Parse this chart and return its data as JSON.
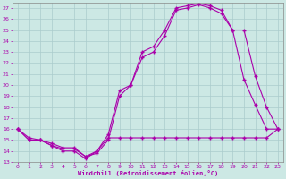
{
  "xlabel": "Windchill (Refroidissement éolien,°C)",
  "bg_color": "#cce8e4",
  "line_color": "#aa00aa",
  "grid_color": "#aacccc",
  "xlim": [
    -0.5,
    23.5
  ],
  "ylim": [
    13,
    27.5
  ],
  "xticks": [
    0,
    1,
    2,
    3,
    4,
    5,
    6,
    7,
    8,
    9,
    10,
    11,
    12,
    13,
    14,
    15,
    16,
    17,
    18,
    19,
    20,
    21,
    22,
    23
  ],
  "yticks": [
    13,
    14,
    15,
    16,
    17,
    18,
    19,
    20,
    21,
    22,
    23,
    24,
    25,
    26,
    27
  ],
  "curve1_x": [
    0,
    1,
    2,
    3,
    4,
    5,
    6,
    7,
    8,
    9,
    10,
    11,
    12,
    13,
    14,
    15,
    16,
    17,
    18,
    19,
    20,
    21,
    22,
    23
  ],
  "curve1_y": [
    16,
    15,
    15,
    14.5,
    14,
    14,
    13.3,
    14,
    15.5,
    19.5,
    20.0,
    23.0,
    23.5,
    25.0,
    27.0,
    27.2,
    27.4,
    27.2,
    26.8,
    25.0,
    20.5,
    18.2,
    16.0,
    16.0
  ],
  "curve2_x": [
    0,
    1,
    2,
    3,
    4,
    5,
    6,
    7,
    8,
    9,
    10,
    11,
    12,
    13,
    14,
    15,
    16,
    17,
    18,
    19,
    20,
    21,
    22,
    23
  ],
  "curve2_y": [
    16,
    15,
    15,
    14.5,
    14.2,
    14.2,
    13.5,
    13.8,
    15.0,
    19.0,
    20.0,
    22.5,
    23.0,
    24.5,
    26.8,
    27.0,
    27.3,
    27.0,
    26.5,
    25.0,
    25.0,
    20.8,
    18.0,
    16.0
  ],
  "curve3_x": [
    0,
    1,
    2,
    3,
    4,
    5,
    6,
    7,
    8,
    9,
    10,
    11,
    12,
    13,
    14,
    15,
    16,
    17,
    18,
    19,
    20,
    21,
    22,
    23
  ],
  "curve3_y": [
    16,
    15.2,
    15.0,
    14.7,
    14.3,
    14.3,
    13.5,
    14.0,
    15.2,
    15.2,
    15.2,
    15.2,
    15.2,
    15.2,
    15.2,
    15.2,
    15.2,
    15.2,
    15.2,
    15.2,
    15.2,
    15.2,
    15.2,
    16.0
  ]
}
